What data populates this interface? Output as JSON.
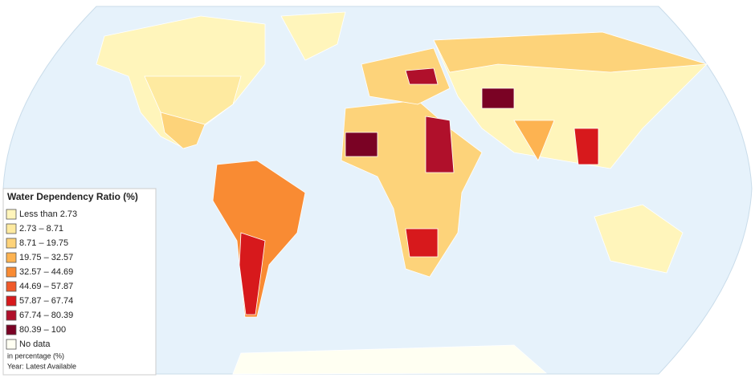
{
  "legend": {
    "title": "Water Dependency Ratio (%)",
    "items": [
      {
        "label": "Less than 2.73",
        "color": "#fff5bb"
      },
      {
        "label": "2.73 – 8.71",
        "color": "#feeaa0"
      },
      {
        "label": "8.71 – 19.75",
        "color": "#fdd37a"
      },
      {
        "label": "19.75 – 32.57",
        "color": "#fdb351"
      },
      {
        "label": "32.57 – 44.69",
        "color": "#f98b33"
      },
      {
        "label": "44.69 – 57.87",
        "color": "#f05a2a"
      },
      {
        "label": "57.87 – 67.74",
        "color": "#d7191c"
      },
      {
        "label": "67.74 – 80.39",
        "color": "#b0102b"
      },
      {
        "label": "80.39 – 100",
        "color": "#7a0224"
      },
      {
        "label": "No data",
        "color": "#fffff2"
      }
    ],
    "notes": [
      "in percentage (%)",
      "Year: Latest Available"
    ]
  }
}
